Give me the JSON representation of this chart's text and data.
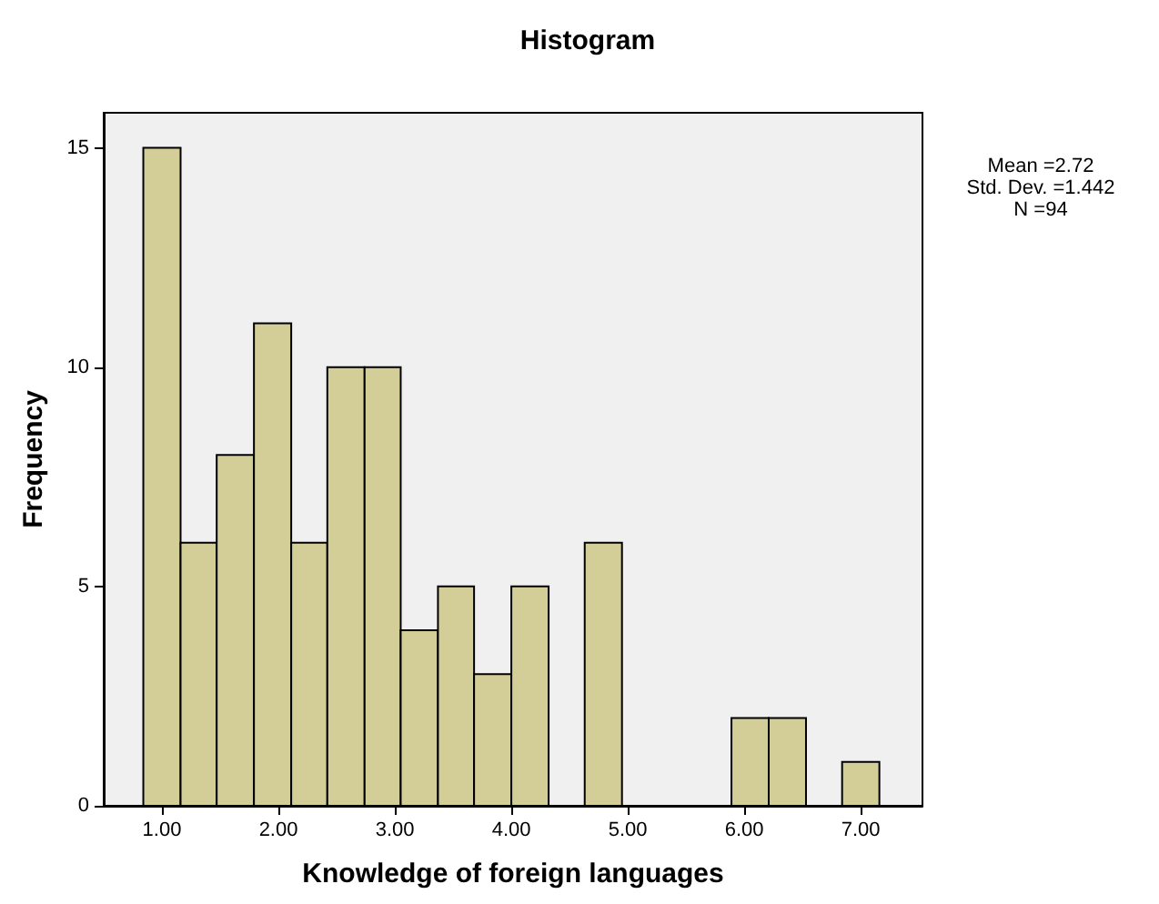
{
  "chart_data": {
    "type": "histogram",
    "title": "Histogram",
    "xlabel": "Knowledge of foreign languages",
    "ylabel": "Frequency",
    "annotations": [
      "Mean =2.72",
      "Std. Dev. =1.442",
      "N =94"
    ],
    "bins": [
      0.84,
      1.16,
      1.47,
      1.79,
      2.11,
      2.42,
      2.74,
      3.05,
      3.37,
      3.68,
      4.0,
      4.32,
      4.63,
      4.95,
      5.89,
      6.21,
      6.53,
      6.84,
      7.16
    ],
    "values": [
      15,
      6,
      8,
      11,
      6,
      10,
      10,
      4,
      5,
      3,
      5,
      0,
      6,
      0,
      2,
      2,
      0,
      1
    ],
    "color": "#d3ce97",
    "xlim": [
      0.5,
      7.53
    ],
    "xticks": [
      {
        "value": 1,
        "label": "1.00"
      },
      {
        "value": 2,
        "label": "2.00"
      },
      {
        "value": 3,
        "label": "3.00"
      },
      {
        "value": 4,
        "label": "4.00"
      },
      {
        "value": 5,
        "label": "5.00"
      },
      {
        "value": 6,
        "label": "6.00"
      },
      {
        "value": 7,
        "label": "7.00"
      }
    ],
    "ylim": [
      0,
      15.8
    ],
    "yticks": [
      0,
      5,
      10,
      15
    ],
    "grid": false
  }
}
